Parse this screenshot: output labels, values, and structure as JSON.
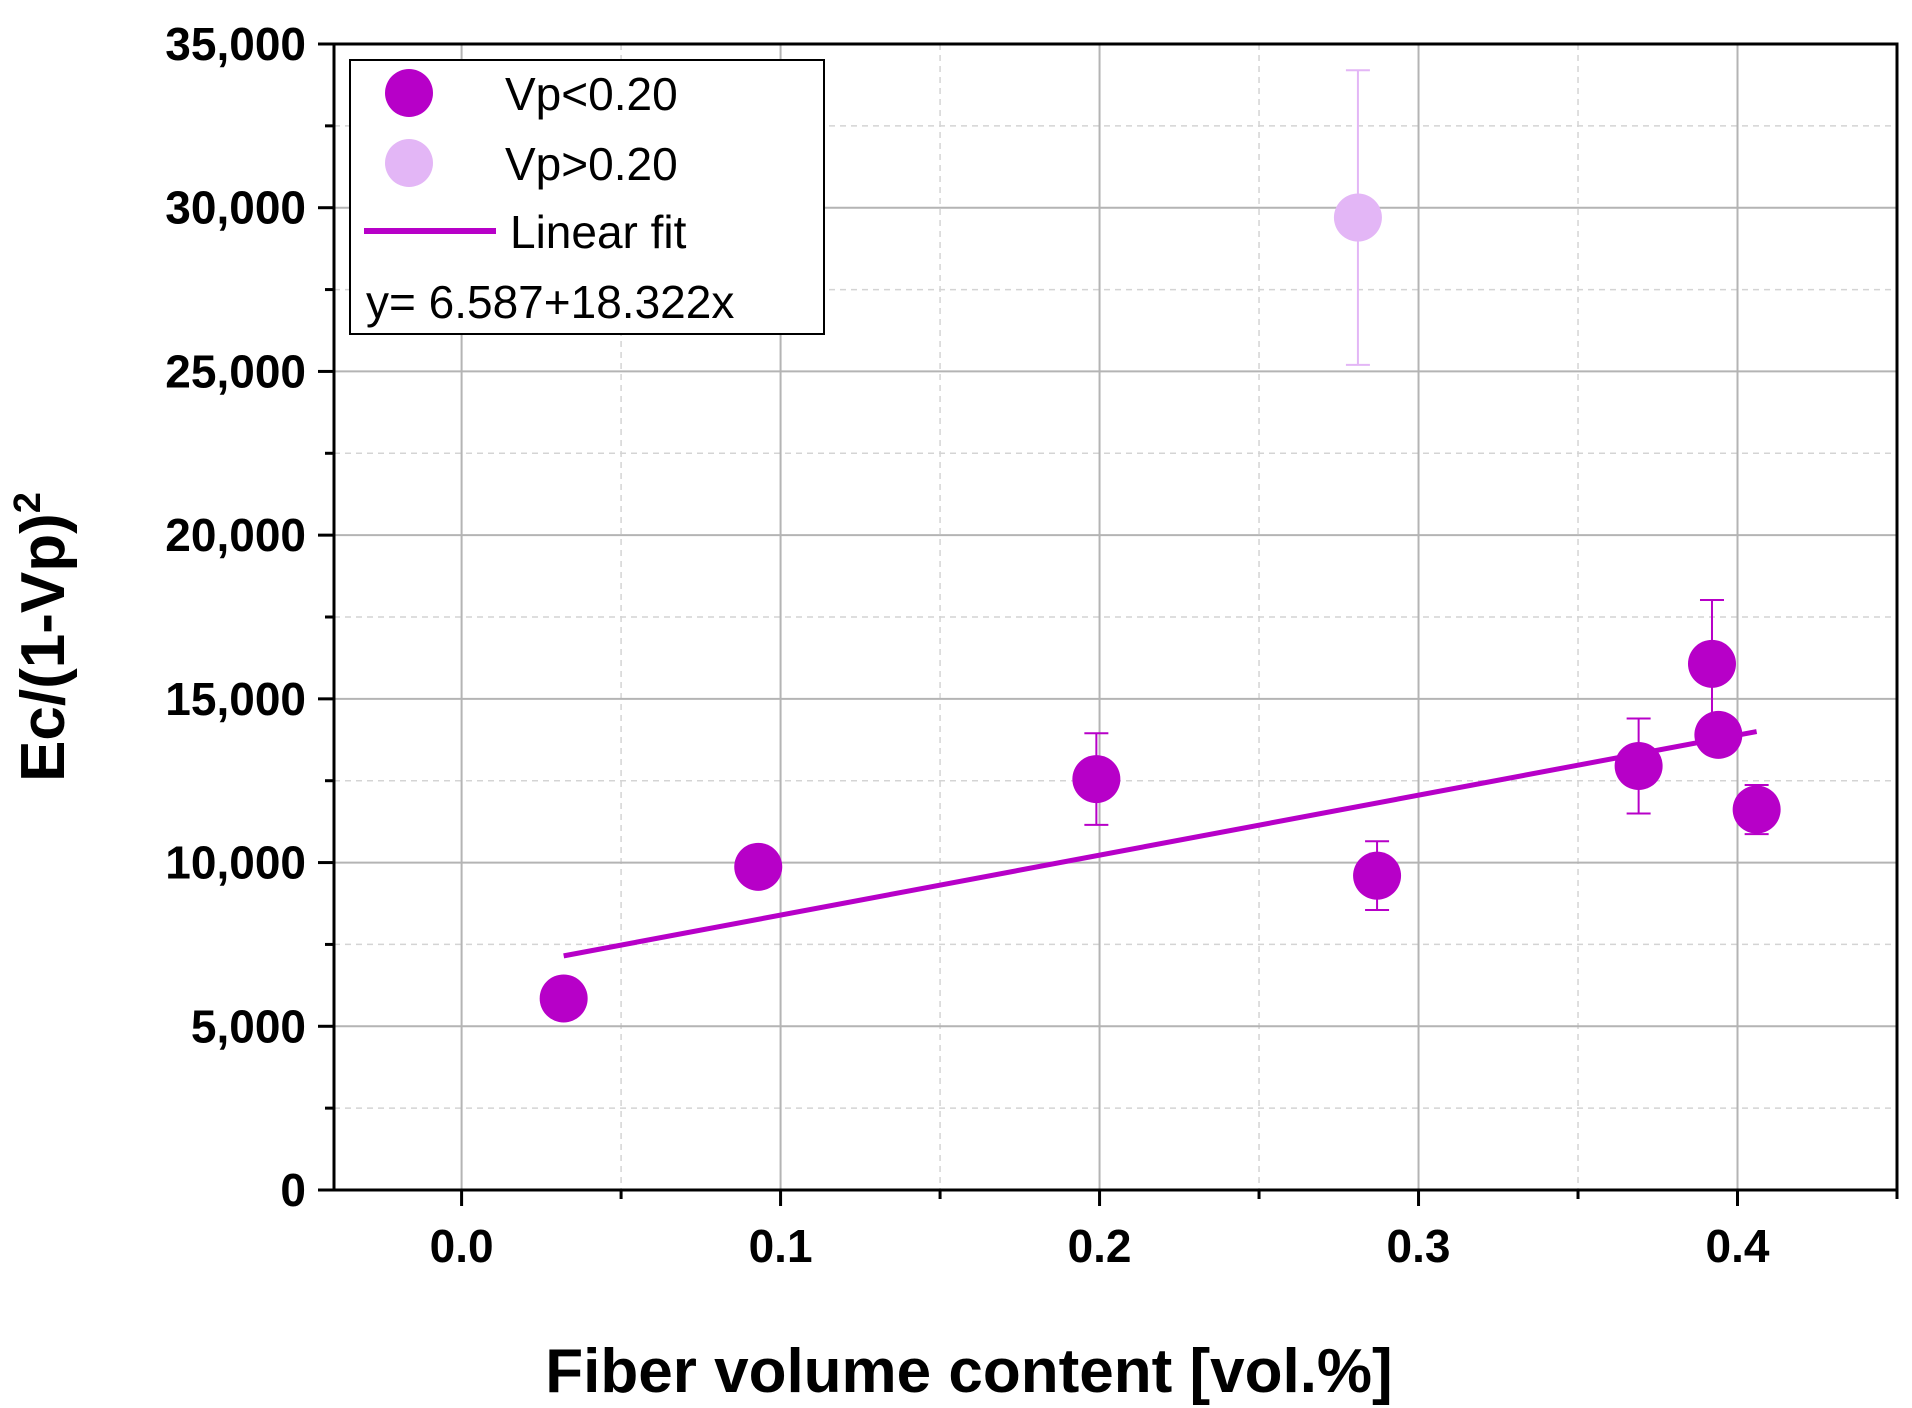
{
  "chart_data": {
    "type": "scatter",
    "xlabel": "Fiber volume content [vol.%]",
    "ylabel": "Ec/(1-Vp)",
    "ylabel_superscript": "2",
    "xlim": [
      -0.04,
      0.45
    ],
    "ylim": [
      0,
      35000
    ],
    "x_ticks": [
      0.0,
      0.1,
      0.2,
      0.3,
      0.4
    ],
    "x_tick_labels": [
      "0.0",
      "0.1",
      "0.2",
      "0.3",
      "0.4"
    ],
    "y_ticks": [
      0,
      5000,
      10000,
      15000,
      20000,
      25000,
      30000,
      35000
    ],
    "y_tick_labels": [
      "0",
      "5,000",
      "10,000",
      "15,000",
      "20,000",
      "25,000",
      "30,000",
      "35,000"
    ],
    "x_minor_ticks": [
      -0.05,
      0.05,
      0.15,
      0.25,
      0.35,
      0.45
    ],
    "y_minor_ticks": [
      2500,
      7500,
      12500,
      17500,
      22500,
      27500,
      32500
    ],
    "grid": true,
    "legend_position": "top-left",
    "colors": {
      "vp_low": "#b700c8",
      "vp_high": "#e3b6f6",
      "fit": "#b700c8",
      "grid_major": "#b4b4b4",
      "grid_minor": "#d4d4d4"
    },
    "series": [
      {
        "name": "Vp<0.20",
        "color": "#b700c8",
        "points": [
          {
            "x": 0.032,
            "y": 5850,
            "err": null
          },
          {
            "x": 0.093,
            "y": 9870,
            "err": null
          },
          {
            "x": 0.199,
            "y": 12550,
            "err": 1400
          },
          {
            "x": 0.287,
            "y": 9600,
            "err": 1050
          },
          {
            "x": 0.369,
            "y": 12950,
            "err": 1450
          },
          {
            "x": 0.392,
            "y": 16070,
            "err": 1950
          },
          {
            "x": 0.394,
            "y": 13900,
            "err": null
          },
          {
            "x": 0.406,
            "y": 11620,
            "err": 750
          }
        ]
      },
      {
        "name": "Vp>0.20",
        "color": "#e3b6f6",
        "points": [
          {
            "x": 0.281,
            "y": 29700,
            "err": 4500
          }
        ]
      }
    ],
    "fit": {
      "name": "Linear fit",
      "equation": "y= 6.587+18.322x",
      "x": [
        0.032,
        0.406
      ],
      "y": [
        7150,
        14000
      ]
    }
  }
}
